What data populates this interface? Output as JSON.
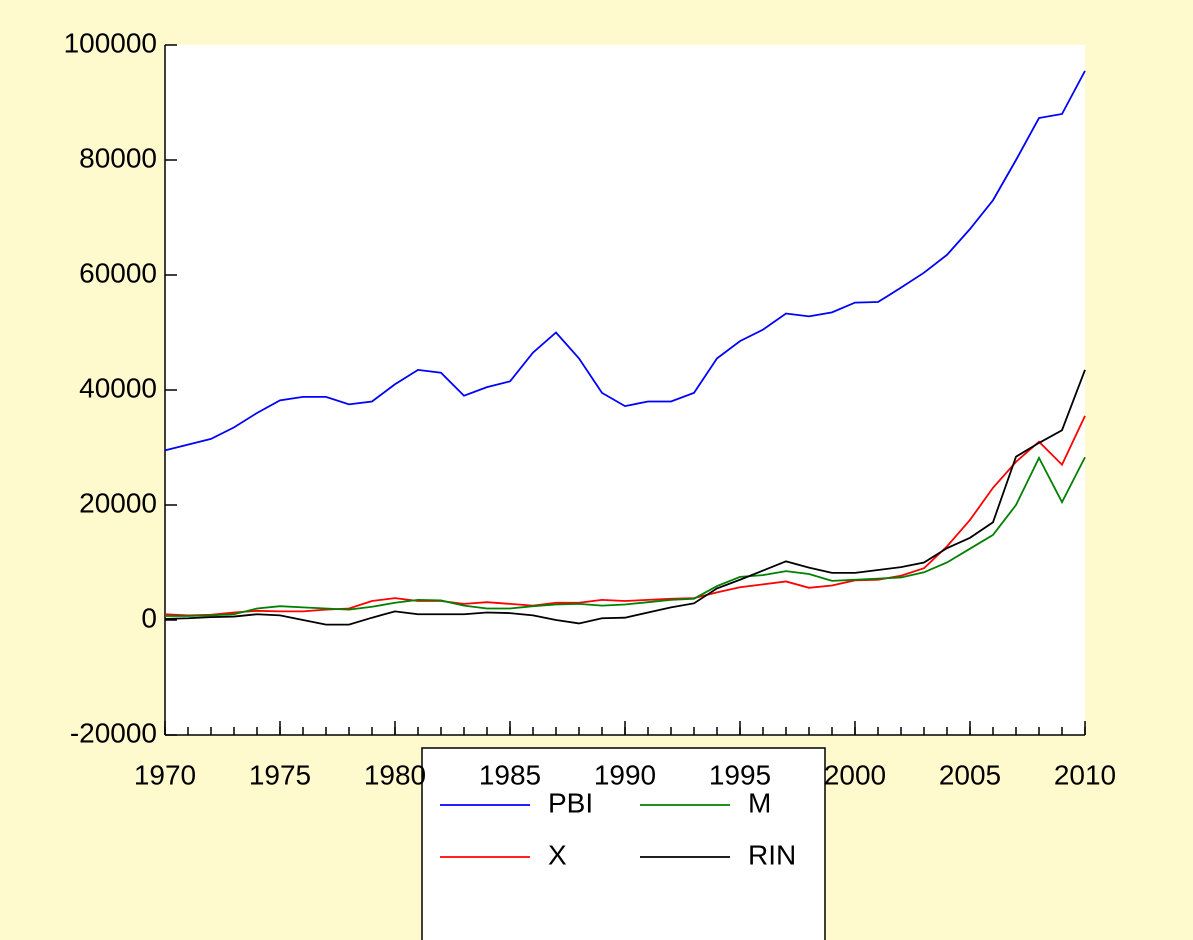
{
  "chart_data": {
    "type": "line",
    "x": [
      1970,
      1971,
      1972,
      1973,
      1974,
      1975,
      1976,
      1977,
      1978,
      1979,
      1980,
      1981,
      1982,
      1983,
      1984,
      1985,
      1986,
      1987,
      1988,
      1989,
      1990,
      1991,
      1992,
      1993,
      1994,
      1995,
      1996,
      1997,
      1998,
      1999,
      2000,
      2001,
      2002,
      2003,
      2004,
      2005,
      2006,
      2007,
      2008,
      2009,
      2010
    ],
    "series": [
      {
        "name": "PBI",
        "color": "#0000ff",
        "values": [
          29500,
          30500,
          31500,
          33500,
          36000,
          38200,
          38800,
          38800,
          37500,
          38000,
          41000,
          43500,
          43000,
          39000,
          40500,
          41500,
          46500,
          50000,
          45500,
          39500,
          37200,
          38000,
          38000,
          39500,
          45500,
          48500,
          50500,
          53300,
          52800,
          53500,
          55200,
          55300,
          57800,
          60400,
          63500,
          68000,
          73000,
          80000,
          87300,
          88000,
          95500
        ]
      },
      {
        "name": "X",
        "color": "#ff0000",
        "values": [
          1000,
          800,
          900,
          1300,
          1600,
          1500,
          1500,
          1800,
          2000,
          3300,
          3800,
          3300,
          3300,
          2800,
          3100,
          2800,
          2500,
          3000,
          3000,
          3500,
          3300,
          3500,
          3700,
          3800,
          4800,
          5700,
          6200,
          6700,
          5600,
          6000,
          6900,
          7000,
          7700,
          9000,
          12800,
          17400,
          23000,
          27500,
          31000,
          27000,
          35500
        ]
      },
      {
        "name": "M",
        "color": "#008000",
        "values": [
          700,
          700,
          800,
          1000,
          2000,
          2400,
          2200,
          2000,
          1800,
          2300,
          3000,
          3500,
          3400,
          2500,
          2000,
          2000,
          2400,
          2700,
          2800,
          2500,
          2700,
          3100,
          3500,
          3700,
          5900,
          7500,
          7800,
          8500,
          8000,
          6800,
          7000,
          7200,
          7400,
          8300,
          10000,
          12400,
          14800,
          20000,
          28200,
          20500,
          28300
        ]
      },
      {
        "name": "RIN",
        "color": "#000000",
        "values": [
          200,
          300,
          500,
          600,
          1000,
          800,
          0,
          -800,
          -800,
          400,
          1500,
          1000,
          1000,
          1000,
          1300,
          1200,
          800,
          0,
          -600,
          300,
          400,
          1300,
          2200,
          2900,
          5500,
          7000,
          8600,
          10200,
          9100,
          8200,
          8200,
          8700,
          9200,
          10000,
          12500,
          14300,
          17000,
          28400,
          30800,
          33000,
          43500
        ]
      }
    ],
    "xlim": [
      1970,
      2010
    ],
    "xticks": [
      1970,
      1975,
      1980,
      1985,
      1990,
      1995,
      2000,
      2005,
      2010
    ],
    "ylim": [
      -20000,
      100000
    ],
    "yticks": [
      -20000,
      0,
      20000,
      40000,
      60000,
      80000,
      100000
    ]
  }
}
